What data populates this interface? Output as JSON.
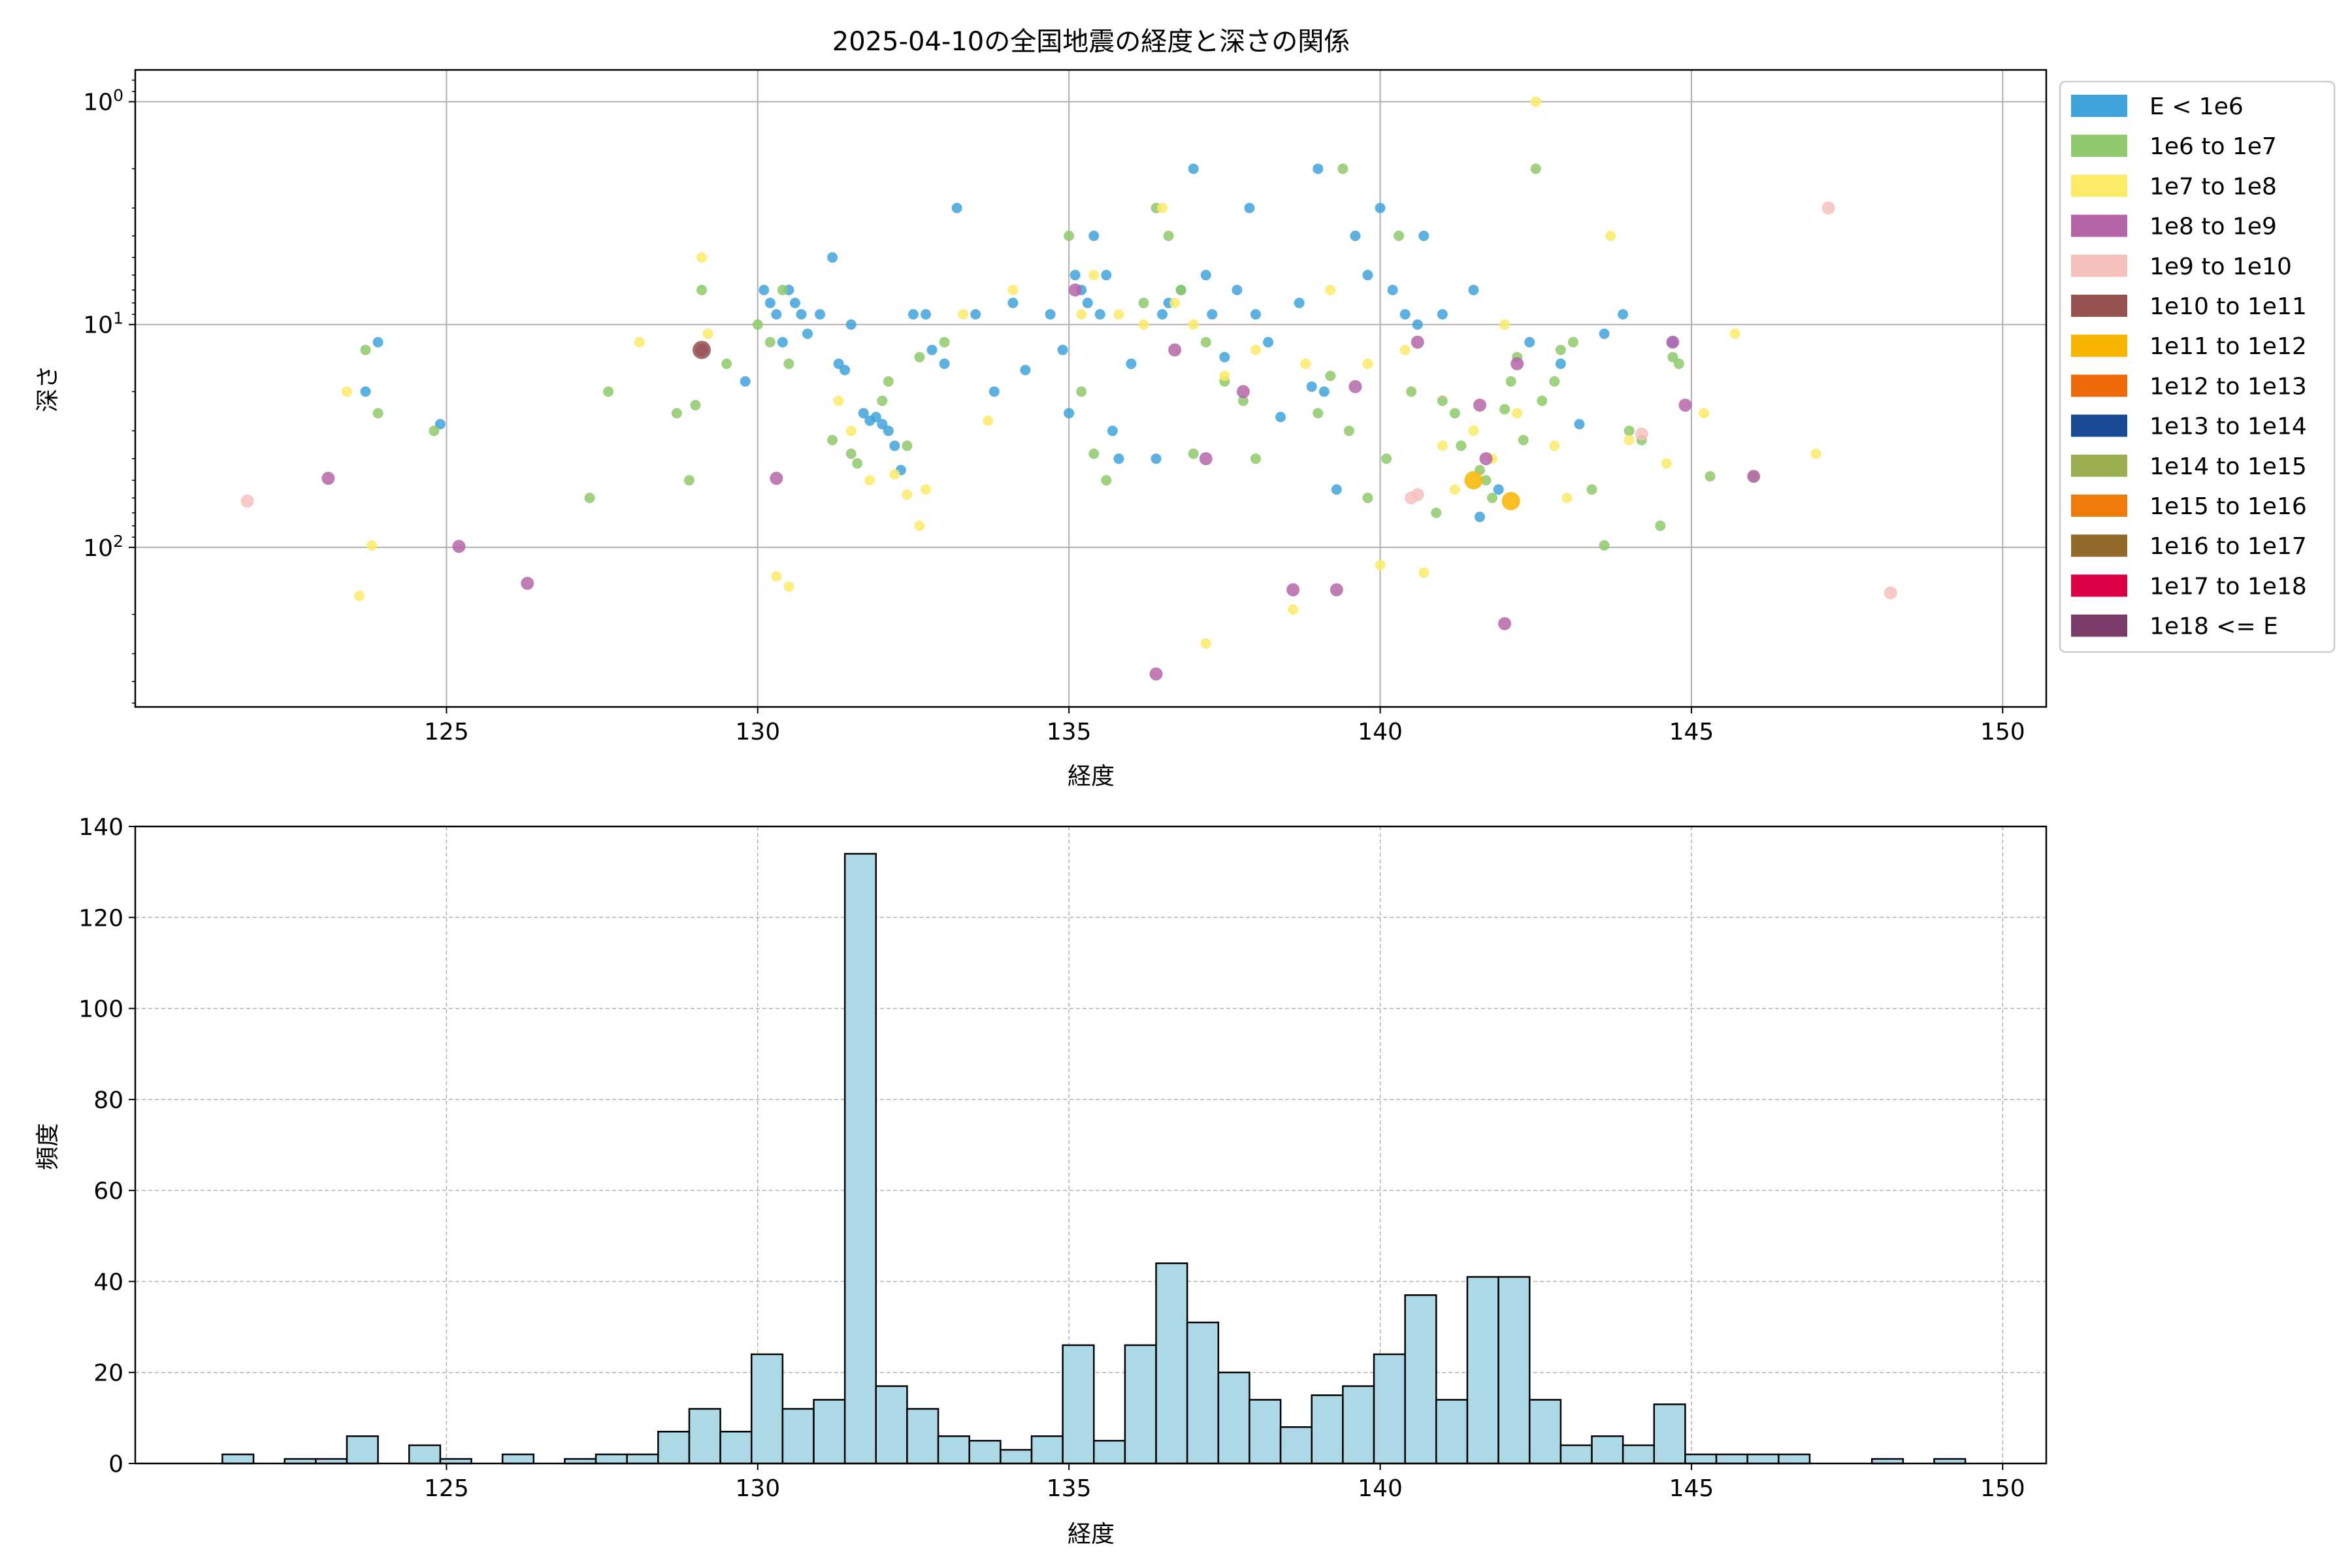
{
  "figure": {
    "title": "2025-04-10の全国地震の経度と深さの関係"
  },
  "chart_data": [
    {
      "type": "scatter",
      "title": "2025-04-10の全国地震の経度と深さの関係",
      "xlabel": "経度",
      "ylabel": "深さ",
      "xlim": [
        120,
        150.7
      ],
      "ylim": [
        520,
        0.72
      ],
      "yscale": "log",
      "y_inverted": true,
      "xticks": [
        125,
        130,
        135,
        140,
        145,
        150
      ],
      "yticks": [
        {
          "value": 1,
          "label": "10^0"
        },
        {
          "value": 10,
          "label": "10^1"
        },
        {
          "value": 100,
          "label": "10^2"
        }
      ],
      "grid": true,
      "legend_position": "outside-right",
      "legend": [
        {
          "label": "E < 1e6",
          "color": "#3fa3dc"
        },
        {
          "label": "1e6 to 1e7",
          "color": "#8fc96b"
        },
        {
          "label": "1e7 to 1e8",
          "color": "#fbeb67"
        },
        {
          "label": "1e8 to 1e9",
          "color": "#b565a7"
        },
        {
          "label": "1e9 to 1e10",
          "color": "#f5c1bc"
        },
        {
          "label": "1e10 to 1e11",
          "color": "#955251"
        },
        {
          "label": "1e11 to 1e12",
          "color": "#f8b500"
        },
        {
          "label": "1e12 to 1e13",
          "color": "#ee6a09"
        },
        {
          "label": "1e13 to 1e14",
          "color": "#1a4a94"
        },
        {
          "label": "1e14 to 1e15",
          "color": "#9aae4f"
        },
        {
          "label": "1e15 to 1e16",
          "color": "#ef7c0a"
        },
        {
          "label": "1e16 to 1e17",
          "color": "#926a2a"
        },
        {
          "label": "1e17 to 1e18",
          "color": "#dc0045"
        },
        {
          "label": "1e18 <= E",
          "color": "#7a3d6a"
        }
      ],
      "series": [
        {
          "name": "E < 1e6",
          "points": [
            [
              123.7,
              20
            ],
            [
              123.9,
              12
            ],
            [
              124.9,
              28
            ],
            [
              129.8,
              18
            ],
            [
              130.1,
              7
            ],
            [
              130.2,
              8
            ],
            [
              130.3,
              9
            ],
            [
              130.4,
              12
            ],
            [
              130.5,
              7
            ],
            [
              130.6,
              8
            ],
            [
              130.7,
              9
            ],
            [
              130.8,
              11
            ],
            [
              131,
              9
            ],
            [
              131.2,
              5
            ],
            [
              131.3,
              15
            ],
            [
              131.4,
              16
            ],
            [
              131.5,
              10
            ],
            [
              131.7,
              25
            ],
            [
              131.8,
              27
            ],
            [
              131.9,
              26
            ],
            [
              132,
              28
            ],
            [
              132.1,
              30
            ],
            [
              132.2,
              35
            ],
            [
              132.3,
              45
            ],
            [
              132.5,
              9
            ],
            [
              132.7,
              9
            ],
            [
              132.8,
              13
            ],
            [
              133,
              15
            ],
            [
              133.2,
              3
            ],
            [
              133.5,
              9
            ],
            [
              133.8,
              20
            ],
            [
              134.1,
              8
            ],
            [
              134.3,
              16
            ],
            [
              134.7,
              9
            ],
            [
              134.9,
              13
            ],
            [
              135,
              25
            ],
            [
              135.1,
              6
            ],
            [
              135.2,
              7
            ],
            [
              135.3,
              8
            ],
            [
              135.4,
              4
            ],
            [
              135.5,
              9
            ],
            [
              135.6,
              6
            ],
            [
              135.7,
              30
            ],
            [
              135.8,
              40
            ],
            [
              136,
              15
            ],
            [
              136.4,
              40
            ],
            [
              136.5,
              9
            ],
            [
              136.6,
              8
            ],
            [
              136.8,
              7
            ],
            [
              137,
              2
            ],
            [
              137.2,
              6
            ],
            [
              137.3,
              9
            ],
            [
              137.5,
              14
            ],
            [
              137.7,
              7
            ],
            [
              137.9,
              3
            ],
            [
              138,
              9
            ],
            [
              138.2,
              12
            ],
            [
              138.4,
              26
            ],
            [
              138.7,
              8
            ],
            [
              138.9,
              19
            ],
            [
              139,
              2
            ],
            [
              139.1,
              20
            ],
            [
              139.3,
              55
            ],
            [
              139.6,
              4
            ],
            [
              139.8,
              6
            ],
            [
              140,
              3
            ],
            [
              140.2,
              7
            ],
            [
              140.4,
              9
            ],
            [
              140.6,
              10
            ],
            [
              140.7,
              4
            ],
            [
              141,
              9
            ],
            [
              141.5,
              7
            ],
            [
              141.6,
              73
            ],
            [
              141.9,
              55
            ],
            [
              142.4,
              12
            ],
            [
              142.9,
              15
            ],
            [
              143.2,
              28
            ],
            [
              143.6,
              11
            ],
            [
              143.9,
              9
            ],
            [
              144.7,
              12
            ]
          ]
        },
        {
          "name": "1e6 to 1e7",
          "points": [
            [
              123.7,
              13
            ],
            [
              123.9,
              25
            ],
            [
              124.8,
              30
            ],
            [
              127.3,
              60
            ],
            [
              127.6,
              20
            ],
            [
              128.7,
              25
            ],
            [
              128.9,
              50
            ],
            [
              129,
              23
            ],
            [
              129.1,
              7
            ],
            [
              129.5,
              15
            ],
            [
              130,
              10
            ],
            [
              130.2,
              12
            ],
            [
              130.4,
              7
            ],
            [
              130.5,
              15
            ],
            [
              131.2,
              33
            ],
            [
              131.5,
              38
            ],
            [
              131.6,
              42
            ],
            [
              132,
              22
            ],
            [
              132.1,
              18
            ],
            [
              132.4,
              35
            ],
            [
              132.6,
              14
            ],
            [
              133,
              12
            ],
            [
              135,
              4
            ],
            [
              135.2,
              20
            ],
            [
              135.4,
              38
            ],
            [
              135.6,
              50
            ],
            [
              136.2,
              8
            ],
            [
              136.4,
              3
            ],
            [
              136.6,
              4
            ],
            [
              136.8,
              7
            ],
            [
              137,
              38
            ],
            [
              137.2,
              12
            ],
            [
              137.5,
              18
            ],
            [
              137.8,
              22
            ],
            [
              138,
              40
            ],
            [
              139,
              25
            ],
            [
              139.2,
              17
            ],
            [
              139.4,
              2
            ],
            [
              139.5,
              30
            ],
            [
              139.8,
              60
            ],
            [
              140.1,
              40
            ],
            [
              140.3,
              4
            ],
            [
              140.5,
              20
            ],
            [
              140.9,
              70
            ],
            [
              141,
              22
            ],
            [
              141.2,
              25
            ],
            [
              141.3,
              35
            ],
            [
              141.6,
              45
            ],
            [
              141.7,
              50
            ],
            [
              141.8,
              60
            ],
            [
              142,
              24
            ],
            [
              142.1,
              18
            ],
            [
              142.2,
              14
            ],
            [
              142.3,
              33
            ],
            [
              142.5,
              2
            ],
            [
              142.6,
              22
            ],
            [
              142.8,
              18
            ],
            [
              142.9,
              13
            ],
            [
              143.1,
              12
            ],
            [
              143.4,
              55
            ],
            [
              143.6,
              98
            ],
            [
              144,
              30
            ],
            [
              144.2,
              33
            ],
            [
              144.5,
              80
            ],
            [
              144.7,
              14
            ],
            [
              144.8,
              15
            ],
            [
              145.3,
              48
            ],
            [
              146,
              48
            ]
          ]
        },
        {
          "name": "1e7 to 1e8",
          "points": [
            [
              123.4,
              20
            ],
            [
              123.6,
              165
            ],
            [
              123.8,
              98
            ],
            [
              128.1,
              12
            ],
            [
              129.1,
              5
            ],
            [
              129.2,
              11
            ],
            [
              130.3,
              135
            ],
            [
              130.5,
              150
            ],
            [
              131.3,
              22
            ],
            [
              131.5,
              30
            ],
            [
              131.8,
              50
            ],
            [
              132.2,
              47
            ],
            [
              132.4,
              58
            ],
            [
              132.6,
              80
            ],
            [
              132.7,
              55
            ],
            [
              133.3,
              9
            ],
            [
              133.7,
              27
            ],
            [
              134.1,
              7
            ],
            [
              135.2,
              9
            ],
            [
              135.4,
              6
            ],
            [
              135.8,
              9
            ],
            [
              136.2,
              10
            ],
            [
              136.5,
              3
            ],
            [
              136.7,
              8
            ],
            [
              137,
              10
            ],
            [
              137.2,
              270
            ],
            [
              137.5,
              17
            ],
            [
              138,
              13
            ],
            [
              138.6,
              190
            ],
            [
              138.8,
              15
            ],
            [
              139.2,
              7
            ],
            [
              139.8,
              15
            ],
            [
              140,
              120
            ],
            [
              140.4,
              13
            ],
            [
              140.7,
              130
            ],
            [
              141,
              35
            ],
            [
              141.2,
              55
            ],
            [
              141.5,
              30
            ],
            [
              141.8,
              40
            ],
            [
              142,
              10
            ],
            [
              142.2,
              25
            ],
            [
              142.5,
              1
            ],
            [
              142.8,
              35
            ],
            [
              143,
              60
            ],
            [
              143.7,
              4
            ],
            [
              144,
              33
            ],
            [
              144.6,
              42
            ],
            [
              145.2,
              25
            ],
            [
              145.7,
              11
            ],
            [
              147,
              38
            ]
          ]
        },
        {
          "name": "1e8 to 1e9",
          "points": [
            [
              123.1,
              49
            ],
            [
              125.2,
              99
            ],
            [
              126.3,
              145
            ],
            [
              129.1,
              13
            ],
            [
              130.3,
              49
            ],
            [
              135.1,
              7
            ],
            [
              136.4,
              370
            ],
            [
              136.7,
              13
            ],
            [
              137.2,
              40
            ],
            [
              137.8,
              20
            ],
            [
              138.6,
              155
            ],
            [
              139.3,
              155
            ],
            [
              139.6,
              19
            ],
            [
              140.6,
              12
            ],
            [
              141.6,
              23
            ],
            [
              141.7,
              40
            ],
            [
              142,
              220
            ],
            [
              142.2,
              15
            ],
            [
              144.7,
              12
            ],
            [
              144.9,
              23
            ],
            [
              146,
              48
            ]
          ]
        },
        {
          "name": "1e9 to 1e10",
          "points": [
            [
              121.8,
              62
            ],
            [
              140.5,
              60
            ],
            [
              140.6,
              58
            ],
            [
              144.2,
              31
            ],
            [
              147.2,
              3
            ],
            [
              148.2,
              160
            ]
          ]
        },
        {
          "name": "1e10 to 1e11",
          "points": [
            [
              129.1,
              13
            ]
          ]
        },
        {
          "name": "1e11 to 1e12",
          "points": [
            [
              141.5,
              50
            ],
            [
              142.1,
              62
            ]
          ]
        }
      ]
    },
    {
      "type": "bar",
      "subtype": "histogram",
      "xlabel": "経度",
      "ylabel": "頻度",
      "xlim": [
        120,
        150.7
      ],
      "ylim": [
        0,
        140
      ],
      "xticks": [
        125,
        130,
        135,
        140,
        145,
        150
      ],
      "yticks": [
        0,
        20,
        40,
        60,
        80,
        100,
        120,
        140
      ],
      "grid": true,
      "bar_color": "#add8e6",
      "edge_color": "#000000",
      "bin_edges": [
        121.4,
        121.9,
        122.4,
        122.9,
        123.4,
        123.9,
        124.4,
        124.9,
        125.4,
        125.9,
        126.4,
        126.9,
        127.4,
        127.9,
        128.4,
        128.9,
        129.4,
        129.9,
        130.4,
        130.9,
        131.4,
        131.9,
        132.4,
        132.9,
        133.4,
        133.9,
        134.4,
        134.9,
        135.4,
        135.9,
        136.4,
        136.9,
        137.4,
        137.9,
        138.4,
        138.9,
        139.4,
        139.9,
        140.4,
        140.9,
        141.4,
        141.9,
        142.4,
        142.9,
        143.4,
        143.9,
        144.4,
        144.9,
        145.4,
        145.9,
        146.4,
        146.9,
        147.4,
        147.9,
        148.4,
        148.9,
        149.4
      ],
      "values": [
        2,
        0,
        1,
        1,
        6,
        0,
        4,
        1,
        0,
        2,
        0,
        1,
        2,
        2,
        7,
        12,
        7,
        24,
        12,
        14,
        134,
        17,
        12,
        6,
        5,
        3,
        6,
        26,
        5,
        26,
        44,
        31,
        20,
        14,
        8,
        15,
        17,
        24,
        37,
        14,
        41,
        41,
        14,
        4,
        6,
        4,
        13,
        2,
        2,
        2,
        2,
        0,
        0,
        1,
        0,
        1
      ]
    }
  ]
}
